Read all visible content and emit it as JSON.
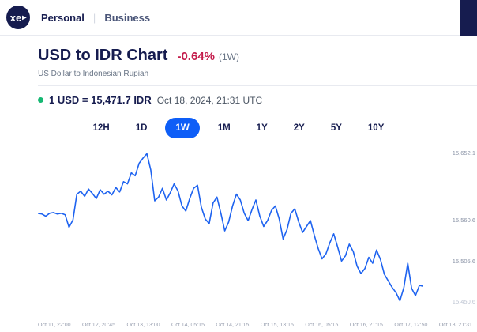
{
  "header": {
    "logo_text": "xe",
    "nav": [
      {
        "label": "Personal"
      },
      {
        "label": "Business"
      }
    ]
  },
  "page": {
    "title": "USD to IDR Chart",
    "change_percent": "-0.64%",
    "change_period": "(1W)",
    "subtitle": "US Dollar to Indonesian Rupiah",
    "rate_text": "1 USD = 15,471.7 IDR",
    "timestamp": "Oct 18, 2024, 21:31 UTC"
  },
  "range_buttons": [
    {
      "label": "12H",
      "active": false
    },
    {
      "label": "1D",
      "active": false
    },
    {
      "label": "1W",
      "active": true
    },
    {
      "label": "1M",
      "active": false
    },
    {
      "label": "1Y",
      "active": false
    },
    {
      "label": "2Y",
      "active": false
    },
    {
      "label": "5Y",
      "active": false
    },
    {
      "label": "10Y",
      "active": false
    }
  ],
  "colors": {
    "brand_navy": "#161c4f",
    "accent_blue": "#0e5ef7",
    "negative_red": "#c41d4c",
    "live_green": "#16b873"
  },
  "chart_data": {
    "type": "line",
    "title": "USD to IDR exchange rate, 1 week",
    "series_name": "USD/IDR",
    "ylim": [
      15445,
      15660
    ],
    "line_color": "#1e63f0",
    "grid": false,
    "legend": "none",
    "y_ticks": [
      {
        "value": 15652.1,
        "label": "15,652.1",
        "muted": false
      },
      {
        "value": 15560.6,
        "label": "15,560.6",
        "muted": false
      },
      {
        "value": 15505.6,
        "label": "15,505.6",
        "muted": false
      },
      {
        "value": 15450.6,
        "label": "15,450.6",
        "muted": true
      }
    ],
    "x_ticks": [
      "Oct 11, 22:00",
      "Oct 12, 20:45",
      "Oct 13, 13:00",
      "Oct 14, 05:15",
      "Oct 14, 21:15",
      "Oct 15, 13:15",
      "Oct 16, 05:15",
      "Oct 16, 21:15",
      "Oct 17, 12:50",
      "Oct 18, 21:31"
    ],
    "values": [
      15571,
      15570,
      15567,
      15571,
      15572,
      15570,
      15571,
      15569,
      15552,
      15562,
      15597,
      15601,
      15594,
      15604,
      15598,
      15591,
      15603,
      15597,
      15601,
      15596,
      15606,
      15600,
      15614,
      15611,
      15626,
      15622,
      15639,
      15646,
      15652,
      15630,
      15588,
      15593,
      15605,
      15589,
      15599,
      15611,
      15601,
      15581,
      15574,
      15591,
      15605,
      15609,
      15579,
      15563,
      15557,
      15585,
      15593,
      15571,
      15547,
      15559,
      15581,
      15597,
      15589,
      15571,
      15561,
      15576,
      15589,
      15567,
      15553,
      15561,
      15575,
      15581,
      15563,
      15536,
      15549,
      15571,
      15577,
      15559,
      15545,
      15553,
      15561,
      15541,
      15523,
      15509,
      15516,
      15531,
      15543,
      15525,
      15506,
      15513,
      15529,
      15519,
      15499,
      15489,
      15496,
      15511,
      15503,
      15521,
      15508,
      15488,
      15479,
      15470,
      15463,
      15452,
      15470,
      15503,
      15469,
      15459,
      15473,
      15471.7
    ]
  }
}
